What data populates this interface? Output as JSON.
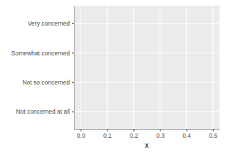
{
  "chart_data": {
    "type": "bar",
    "orientation": "horizontal",
    "categories": [
      "Very concerned",
      "Somewhat concerned",
      "Not so concerned",
      "Not concerned at all"
    ],
    "values": [
      null,
      null,
      null,
      null
    ],
    "x_label": "x",
    "xlim": [
      -0.025,
      0.525
    ],
    "xticks": [
      {
        "value": 0,
        "label": "0.0"
      },
      0.1,
      0.2,
      0.3,
      0.4,
      0.5
    ],
    "grid": true
  }
}
